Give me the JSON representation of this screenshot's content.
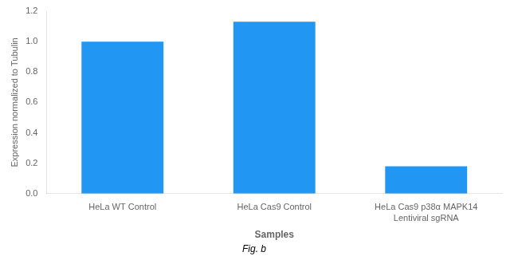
{
  "chart_data": {
    "type": "bar",
    "categories": [
      "HeLa WT Control",
      "HeLa Cas9 Control",
      "HeLa Cas9 p38α MAPK14\nLentiviral sgRNA"
    ],
    "values": [
      1.0,
      1.13,
      0.18
    ],
    "color": "#2196F3",
    "ylim": [
      0,
      1.2
    ],
    "yticks": [
      {
        "value": 0,
        "label": "0.0"
      },
      0.2,
      0.4,
      0.6,
      0.8,
      {
        "value": 1.0,
        "label": "1.0"
      },
      1.2
    ],
    "ylabel": "Expression normalized to Tubulin",
    "xlabel": "Samples",
    "annotations": [
      "Fig. b"
    ],
    "grid": false,
    "legend": false
  }
}
